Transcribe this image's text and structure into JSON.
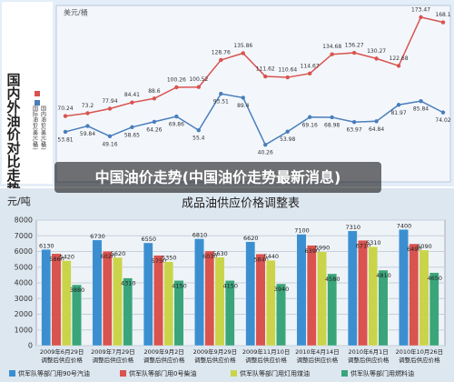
{
  "overlay_title": "中国油价走势(中国油价走势最新消息)",
  "chart_data": [
    {
      "type": "line",
      "title": "国内外油价对比走势图",
      "y_label": "美元/桶",
      "categories": [
        null,
        null,
        null,
        null,
        null,
        null,
        null,
        null,
        null,
        null,
        null,
        null,
        null,
        null,
        null,
        null,
        null,
        null
      ],
      "ylim": [
        30,
        180
      ],
      "series": [
        {
          "name": "国际油价(美元/桶)",
          "color": "#d9534f",
          "values": [
            70.24,
            73.2,
            77.94,
            84.41,
            88.6,
            100.26,
            100.52,
            128.76,
            135.86,
            111.62,
            110.64,
            114.67,
            134.68,
            136.27,
            130.27,
            122.68,
            173.47,
            168.1
          ]
        },
        {
          "name": "国内油价(美元/桶)",
          "color": "#4a7ebb",
          "values": [
            53.81,
            59.84,
            49.16,
            58.65,
            64.26,
            69.86,
            55.4,
            93.51,
            89.4,
            40.26,
            53.98,
            69.16,
            68.98,
            63.97,
            64.84,
            81.97,
            85.84,
            74.02
          ]
        }
      ]
    },
    {
      "type": "bar",
      "title": "成品油供应价格调整表",
      "y_label": "元/吨",
      "category_note": "调整后供应价格",
      "categories": [
        "2009年6月29日",
        "2009年7月29日",
        "2009年9月2日",
        "2009年9月29日",
        "2009年11月10日",
        "2010年4月14日",
        "2010年6月1日",
        "2010年10月26日"
      ],
      "ylim": [
        0,
        8000
      ],
      "yticks": [
        0,
        1000,
        2000,
        3000,
        4000,
        5000,
        6000,
        7000,
        8000
      ],
      "grid": true,
      "series": [
        {
          "name": "供军队等部门用90号汽油",
          "color": "#3b8fd0",
          "values": [
            6130,
            6730,
            6550,
            6810,
            6620,
            7100,
            7310,
            7400
          ]
        },
        {
          "name": "供军队等部门用0号柴油",
          "color": "#d9534f",
          "values": [
            5860,
            6020,
            5750,
            6030,
            5840,
            6390,
            6710,
            6490
          ]
        },
        {
          "name": "供军队等部门用灯用煤油",
          "color": "#c9d44a",
          "values": [
            5420,
            5620,
            5350,
            5630,
            5440,
            5990,
            6310,
            6090
          ]
        },
        {
          "name": "供军队等部门用燃料油",
          "color": "#3aa57a",
          "values": [
            3880,
            4310,
            4150,
            4150,
            3940,
            4580,
            4810,
            4650
          ]
        }
      ]
    }
  ]
}
